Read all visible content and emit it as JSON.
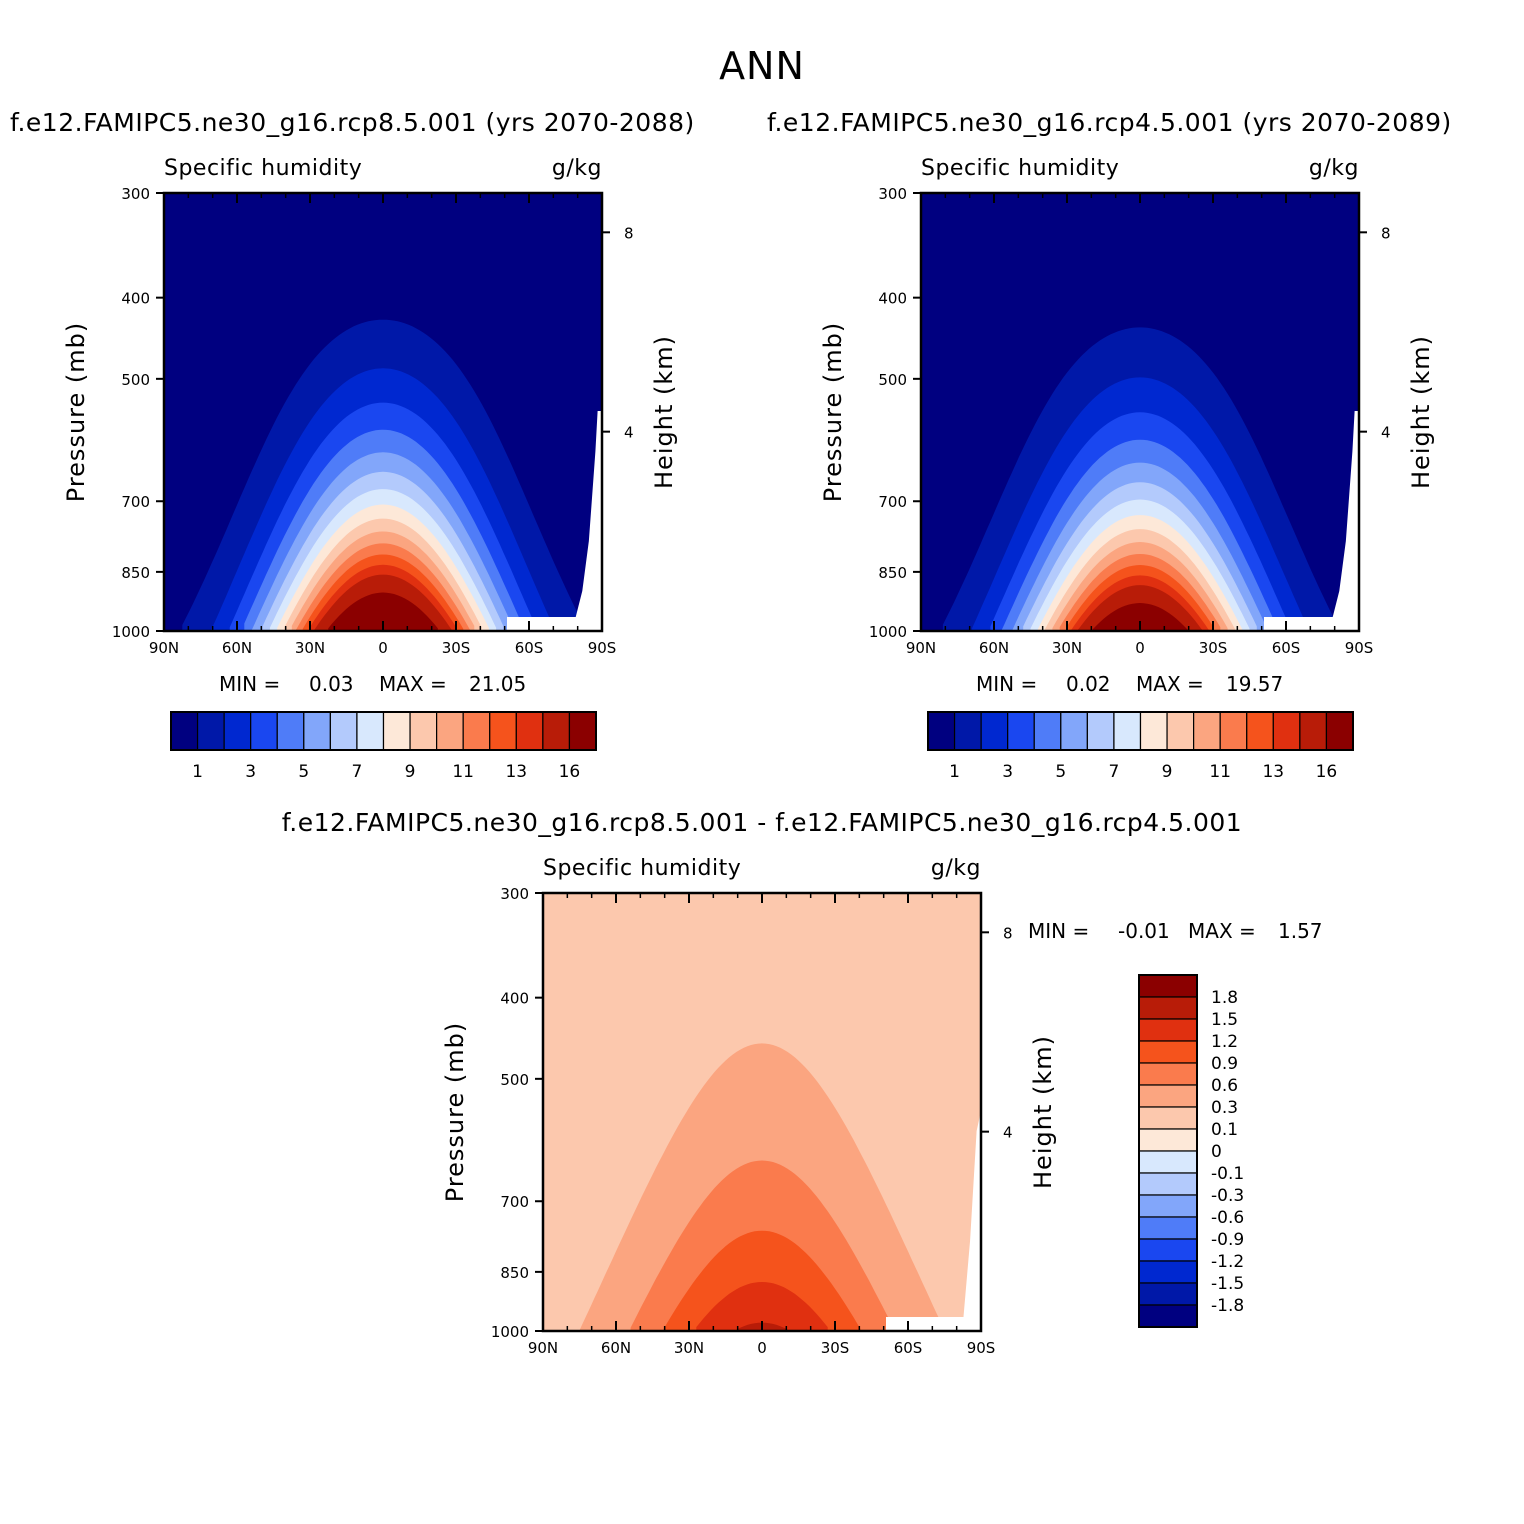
{
  "main_title": "ANN",
  "left_title": "f.e12.FAMIPC5.ne30_g16.rcp8.5.001 (yrs 2070-2088)",
  "right_title": "f.e12.FAMIPC5.ne30_g16.rcp4.5.001 (yrs 2070-2089)",
  "diff_title": "f.e12.FAMIPC5.ne30_g16.rcp8.5.001 - f.e12.FAMIPC5.ne30_g16.rcp4.5.001",
  "colors": {
    "blues": [
      "#000080",
      "#0018a8",
      "#0028d0",
      "#1a47f0",
      "#4f7cf8",
      "#82a6fa",
      "#b3cafc",
      "#d8e8fd"
    ],
    "reds": [
      "#fde8d8",
      "#fcc8ad",
      "#fba580",
      "#fa7b4d",
      "#f5531c",
      "#e03010",
      "#b81c08",
      "#8b0000"
    ],
    "diff_levels": [
      "#000080",
      "#0018a8",
      "#0028d0",
      "#1a47f0",
      "#4f7cf8",
      "#82a6fa",
      "#b3cafc",
      "#d8e8fd",
      "#fde8d8",
      "#fcc8ad",
      "#fba580",
      "#fa7b4d",
      "#f5531c",
      "#e03010",
      "#b81c08",
      "#8b0000"
    ]
  },
  "chart_data": [
    {
      "type": "heatmap",
      "panel": "left",
      "title_left": "Specific humidity",
      "title_right": "g/kg",
      "xlabel": "",
      "ylabel": "Pressure (mb)",
      "ylabel_right": "Height (km)",
      "x_ticks": [
        "90N",
        "60N",
        "30N",
        "0",
        "30S",
        "60S",
        "90S"
      ],
      "y_ticks": [
        300,
        400,
        500,
        700,
        850,
        1000
      ],
      "y_right_ticks": [
        8,
        4
      ],
      "ylim": [
        1000,
        300
      ],
      "stats": {
        "min_label": "MIN =",
        "min": "0.03",
        "max_label": "MAX =",
        "max": "21.05"
      },
      "colorbar_labels": [
        "1",
        "3",
        "5",
        "7",
        "9",
        "11",
        "13",
        "16"
      ],
      "contour_levels": [
        1,
        2,
        3,
        4,
        5,
        6,
        7,
        8,
        9,
        10,
        11,
        12,
        13,
        14,
        16
      ],
      "surface_peak": 21.05,
      "peak_height_scale": 0.56
    },
    {
      "type": "heatmap",
      "panel": "right",
      "title_left": "Specific humidity",
      "title_right": "g/kg",
      "xlabel": "",
      "ylabel": "Pressure (mb)",
      "ylabel_right": "Height (km)",
      "x_ticks": [
        "90N",
        "60N",
        "30N",
        "0",
        "30S",
        "60S",
        "90S"
      ],
      "y_ticks": [
        300,
        400,
        500,
        700,
        850,
        1000
      ],
      "y_right_ticks": [
        8,
        4
      ],
      "ylim": [
        1000,
        300
      ],
      "stats": {
        "min_label": "MIN =",
        "min": "0.02",
        "max_label": "MAX =",
        "max": "19.57"
      },
      "colorbar_labels": [
        "1",
        "3",
        "5",
        "7",
        "9",
        "11",
        "13",
        "16"
      ],
      "contour_levels": [
        1,
        2,
        3,
        4,
        5,
        6,
        7,
        8,
        9,
        10,
        11,
        12,
        13,
        14,
        16
      ],
      "surface_peak": 19.57,
      "peak_height_scale": 0.55
    },
    {
      "type": "heatmap",
      "panel": "difference",
      "title_left": "Specific humidity",
      "title_right": "g/kg",
      "xlabel": "",
      "ylabel": "Pressure (mb)",
      "ylabel_right": "Height (km)",
      "x_ticks": [
        "90N",
        "60N",
        "30N",
        "0",
        "30S",
        "60S",
        "90S"
      ],
      "y_ticks": [
        300,
        400,
        500,
        700,
        850,
        1000
      ],
      "y_right_ticks": [
        8,
        4
      ],
      "ylim": [
        1000,
        300
      ],
      "stats": {
        "min_label": "MIN =",
        "min": "-0.01",
        "max_label": "MAX =",
        "max": "1.57"
      },
      "colorbar_labels": [
        "1.8",
        "1.5",
        "1.2",
        "0.9",
        "0.6",
        "0.3",
        "0.1",
        "0",
        "-0.1",
        "-0.3",
        "-0.6",
        "-0.9",
        "-1.2",
        "-1.5",
        "-1.8"
      ],
      "diff_levels": [
        -1.8,
        -1.5,
        -1.2,
        -0.9,
        -0.6,
        -0.3,
        -0.1,
        0,
        0.1,
        0.3,
        0.6,
        0.9,
        1.2,
        1.5,
        1.8
      ],
      "surface_peak": 1.57
    }
  ]
}
